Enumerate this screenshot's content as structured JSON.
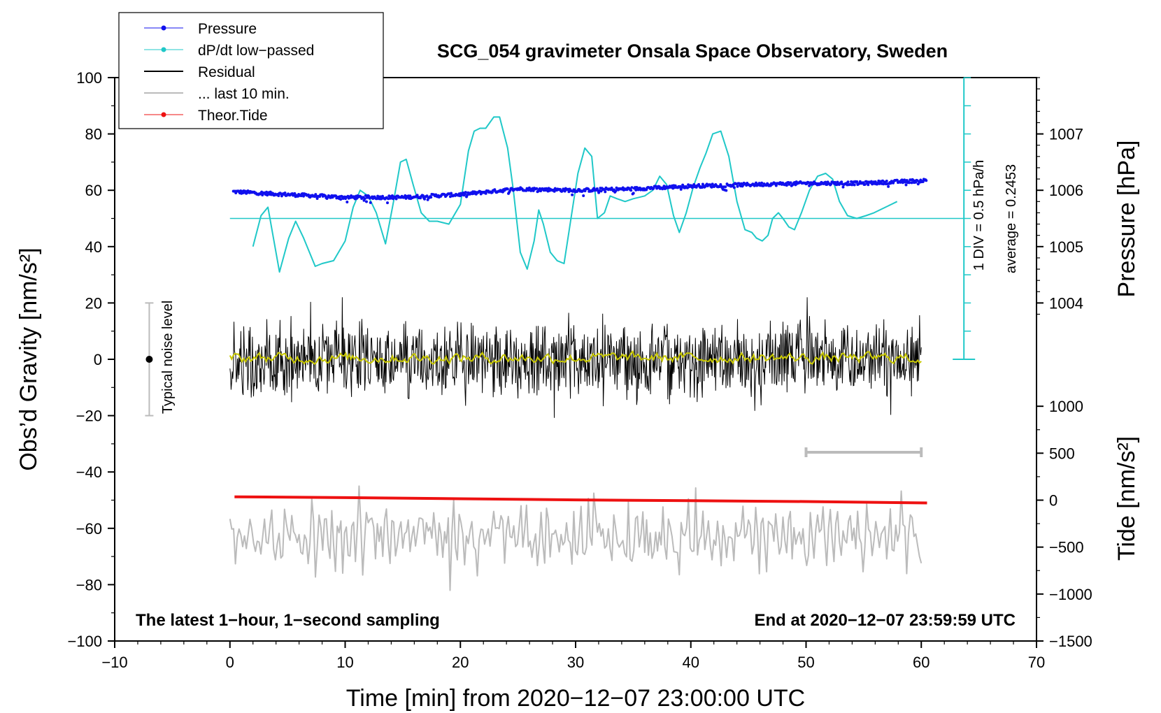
{
  "chart_data": {
    "type": "line",
    "title": "SCG_054 gravimeter Onsala Space Observatory, Sweden",
    "xlabel": "Time [min] from 2020−12−07 23:00:00 UTC",
    "ylabel_left": "Obs’d Gravity [nm/s²]",
    "ylabel_right_top": "Pressure [hPa]",
    "ylabel_right_bottom": "Tide [nm/s²]",
    "xlim": [
      -10,
      70
    ],
    "ylim": [
      -100,
      100
    ],
    "x_ticks": [
      "−10",
      "0",
      "10",
      "20",
      "30",
      "40",
      "50",
      "60",
      "70"
    ],
    "x_tick_values": [
      -10,
      0,
      10,
      20,
      30,
      40,
      50,
      60,
      70
    ],
    "y_ticks": [
      "100",
      "80",
      "60",
      "40",
      "20",
      "0",
      "−20",
      "−40",
      "−60",
      "−80",
      "−100"
    ],
    "y_tick_values": [
      100,
      80,
      60,
      40,
      20,
      0,
      -20,
      -40,
      -60,
      -80,
      -100
    ],
    "pressure_axis": {
      "ticks": [
        "1007",
        "1006",
        "1005",
        "1004"
      ],
      "tick_values": [
        1007,
        1006,
        1005,
        1004
      ],
      "gravity_equiv": [
        80,
        60,
        40,
        20
      ]
    },
    "tide_axis": {
      "ticks": [
        "1000",
        "500",
        "0",
        "−500",
        "−1000",
        "−1500"
      ],
      "tick_values": [
        1000,
        500,
        0,
        -500,
        -1000,
        -1500
      ],
      "gravity_equiv": [
        -16.67,
        -33.33,
        -50,
        -66.67,
        -83.33,
        -100
      ]
    },
    "legend": {
      "position": "top-left",
      "entries": [
        {
          "label": "Pressure",
          "color": "#1010ee",
          "style": "line+dot"
        },
        {
          "label": "dP/dt low−passed",
          "color": "#20c8c8",
          "style": "line+dot"
        },
        {
          "label": "Residual",
          "color": "#000000",
          "style": "line"
        },
        {
          "label": "... last 10 min.",
          "color": "#bbbbbb",
          "style": "line"
        },
        {
          "label": "Theor.Tide",
          "color": "#ee1111",
          "style": "line+dot"
        }
      ]
    },
    "series": [
      {
        "name": "Pressure",
        "color": "#1010ee",
        "x": [
          0.3,
          5,
          10,
          15,
          20,
          25,
          30,
          35,
          40,
          45,
          50,
          55,
          60.5
        ],
        "y": [
          59.5,
          58.5,
          57.5,
          57.5,
          58.5,
          60.5,
          60.0,
          60.5,
          61.5,
          62.0,
          62.5,
          62.5,
          63.5
        ]
      },
      {
        "name": "dP/dt low−passed",
        "color": "#20c8c8",
        "x": [
          2,
          2.7,
          3.3,
          4.3,
          5.1,
          5.7,
          6.4,
          7.4,
          8.0,
          9.0,
          10.0,
          10.7,
          11.3,
          12.0,
          12.7,
          13.5,
          14.2,
          14.8,
          15.3,
          15.9,
          16.6,
          17.3,
          18.0,
          19.0,
          20.0,
          20.7,
          21.2,
          21.7,
          22.2,
          22.9,
          23.4,
          24.1,
          24.6,
          25.2,
          25.8,
          26.4,
          26.8,
          27.2,
          27.8,
          28.4,
          29.0,
          29.6,
          30.2,
          30.8,
          31.4,
          31.9,
          32.5,
          33.0,
          33.6,
          34.3,
          35.0,
          36.0,
          36.7,
          37.3,
          37.9,
          38.5,
          39.0,
          39.6,
          40.2,
          40.8,
          41.3,
          41.9,
          42.6,
          43.3,
          44.0,
          44.7,
          45.3,
          45.7,
          46.2,
          46.7,
          47.1,
          47.6,
          48.0,
          48.5,
          49.0,
          49.6,
          50.3,
          51.0,
          51.7,
          52.3,
          52.9,
          53.6,
          54.4,
          55.2,
          55.9,
          56.4,
          56.9,
          57.4,
          57.9
        ],
        "y": [
          40,
          51,
          54,
          31,
          43,
          49,
          43,
          33,
          34,
          35,
          42,
          54,
          60,
          58,
          52,
          41,
          56,
          70,
          71,
          62,
          52,
          49,
          49,
          48,
          55,
          74,
          81,
          82,
          82,
          86,
          86,
          75,
          60,
          38,
          32,
          42,
          53,
          48,
          38,
          35,
          34,
          50,
          66,
          75,
          72,
          50,
          52,
          58,
          57,
          56,
          57,
          58,
          60,
          65,
          62,
          51,
          45,
          52,
          61,
          68,
          73,
          80,
          81,
          72,
          56,
          46,
          45,
          43,
          42,
          44,
          50,
          52,
          50,
          47,
          46,
          52,
          60,
          65,
          66,
          64,
          56,
          51,
          50,
          51,
          52,
          53,
          54,
          55,
          56
        ]
      },
      {
        "name": "dP/dt baseline",
        "color": "#20c8c8",
        "x": [
          0,
          63.7
        ],
        "y": [
          50,
          50
        ]
      },
      {
        "name": "Residual",
        "color": "#000000",
        "x_range": [
          0,
          60
        ],
        "y_range": [
          -22,
          22
        ],
        "mean": 0
      },
      {
        "name": "Residual smoothed",
        "color": "#c8c800",
        "x_range": [
          0,
          60
        ],
        "y_range": [
          -5,
          4
        ],
        "mean": 0.5
      },
      {
        "name": "Theor.Tide",
        "color": "#ee1111",
        "x": [
          0.4,
          10,
          20,
          30,
          40,
          50,
          60.5
        ],
        "y": [
          -48.8,
          -49.1,
          -49.5,
          -49.9,
          -50.2,
          -50.5,
          -51.0
        ]
      },
      {
        "name": "... last 10 min.",
        "color": "#bbbbbb",
        "x_range": [
          0,
          60
        ],
        "y_range": [
          -82,
          -40
        ],
        "mean": -63
      }
    ],
    "annotations": {
      "noise_label": "Typical noise level",
      "noise_bar": {
        "x": -7,
        "center": 0,
        "half_range": 20
      },
      "div_label": "1 DIV = 0.5 hPa/h",
      "average_label": "average = 0.2453",
      "div_scale": {
        "x": 63.7,
        "y_from": 0,
        "y_to": 100
      },
      "last10_bar": {
        "x_from": 50,
        "x_to": 60,
        "y": -33
      },
      "bottom_left": "The latest 1−hour, 1−second sampling",
      "bottom_right": "End at 2020−12−07 23:59:59 UTC"
    }
  }
}
